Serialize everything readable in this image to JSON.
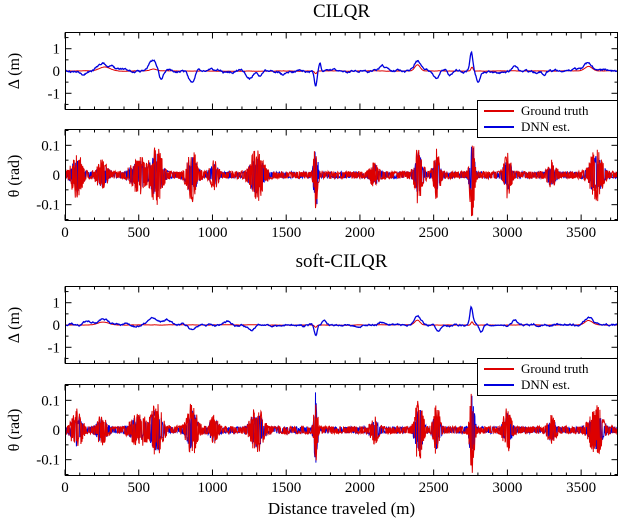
{
  "figure": {
    "titles": {
      "top": "CILQR",
      "bottom": "soft-CILQR"
    },
    "xlabel": "Distance traveled (m)",
    "legend": [
      {
        "label": "Ground truth",
        "color": "#dd0000"
      },
      {
        "label": "DNN est.",
        "color": "#0000dd"
      }
    ]
  },
  "chart_data": [
    {
      "type": "line",
      "group": "CILQR",
      "ylabel": "Δ (m)",
      "xlim": [
        0,
        3750
      ],
      "ylim": [
        -1.75,
        1.75
      ],
      "yticks": [
        -1,
        0,
        1
      ],
      "yminor": 0.5,
      "xticks": [
        0,
        500,
        1000,
        1500,
        2000,
        2500,
        3000,
        3500
      ],
      "xminor": 100,
      "x_labels_visible": false,
      "grid": false,
      "draw_order": [
        0,
        1
      ],
      "series": [
        {
          "name": "Ground truth",
          "color": "#dd0000",
          "lw": 1,
          "gen": "smooth",
          "smooth": 0.9,
          "jitter": 0.004,
          "events": [
            {
              "x": 270,
              "amp": 0.18,
              "w": 50
            },
            {
              "x": 600,
              "amp": 0.08,
              "w": 30
            },
            {
              "x": 1700,
              "amp": -0.12,
              "w": 10
            },
            {
              "x": 2390,
              "amp": 0.28,
              "w": 25
            },
            {
              "x": 2760,
              "amp": 0.18,
              "w": 10
            },
            {
              "x": 3550,
              "amp": 0.2,
              "w": 35
            }
          ]
        },
        {
          "name": "DNN est.",
          "color": "#0000dd",
          "lw": 1.3,
          "gen": "smooth",
          "smooth": 0.9,
          "jitter": 0.04,
          "events": [
            {
              "x": 120,
              "amp": -0.2,
              "w": 30
            },
            {
              "x": 260,
              "amp": 0.3,
              "w": 55
            },
            {
              "x": 330,
              "amp": 0.12,
              "w": 25
            },
            {
              "x": 480,
              "amp": -0.1,
              "w": 25
            },
            {
              "x": 600,
              "amp": 0.45,
              "w": 35
            },
            {
              "x": 650,
              "amp": -0.4,
              "w": 22
            },
            {
              "x": 860,
              "amp": -0.55,
              "w": 28
            },
            {
              "x": 905,
              "amp": 0.18,
              "w": 18
            },
            {
              "x": 1080,
              "amp": -0.12,
              "w": 25
            },
            {
              "x": 1250,
              "amp": -0.25,
              "w": 28
            },
            {
              "x": 1320,
              "amp": -0.32,
              "w": 22
            },
            {
              "x": 1480,
              "amp": -0.15,
              "w": 20
            },
            {
              "x": 1700,
              "amp": -0.7,
              "w": 12
            },
            {
              "x": 1728,
              "amp": 0.35,
              "w": 10
            },
            {
              "x": 2150,
              "amp": 0.2,
              "w": 30
            },
            {
              "x": 2390,
              "amp": 0.42,
              "w": 28
            },
            {
              "x": 2520,
              "amp": -0.35,
              "w": 25
            },
            {
              "x": 2610,
              "amp": -0.18,
              "w": 20
            },
            {
              "x": 2755,
              "amp": 0.85,
              "w": 13
            },
            {
              "x": 2800,
              "amp": -0.45,
              "w": 18
            },
            {
              "x": 3050,
              "amp": 0.25,
              "w": 25
            },
            {
              "x": 3250,
              "amp": -0.15,
              "w": 20
            },
            {
              "x": 3550,
              "amp": 0.3,
              "w": 40
            }
          ]
        }
      ]
    },
    {
      "type": "line",
      "group": "CILQR",
      "ylabel": "θ (rad)",
      "xlim": [
        0,
        3750
      ],
      "ylim": [
        -0.155,
        0.155
      ],
      "yticks": [
        -0.1,
        0,
        0.1
      ],
      "yminor": 0.05,
      "xticks": [
        0,
        500,
        1000,
        1500,
        2000,
        2500,
        3000,
        3500
      ],
      "xminor": 100,
      "x_labels_visible": true,
      "grid": false,
      "draw_order": [
        1,
        0
      ],
      "series": [
        {
          "name": "Ground truth",
          "color": "#dd0000",
          "lw": 1,
          "gen": "noisy",
          "base": 0.013,
          "events": [
            {
              "x": 80,
              "amp": 0.07,
              "w": 40
            },
            {
              "x": 250,
              "amp": 0.04,
              "w": 40
            },
            {
              "x": 500,
              "amp": 0.055,
              "w": 60
            },
            {
              "x": 620,
              "amp": 0.09,
              "w": 45
            },
            {
              "x": 860,
              "amp": 0.08,
              "w": 40
            },
            {
              "x": 1010,
              "amp": 0.04,
              "w": 30
            },
            {
              "x": 1300,
              "amp": 0.08,
              "w": 50
            },
            {
              "x": 1700,
              "amp": 0.1,
              "w": 15
            },
            {
              "x": 2100,
              "amp": 0.035,
              "w": 30
            },
            {
              "x": 2400,
              "amp": 0.1,
              "w": 30
            },
            {
              "x": 2520,
              "amp": 0.08,
              "w": 25
            },
            {
              "x": 2760,
              "amp": 0.14,
              "w": 18
            },
            {
              "x": 3000,
              "amp": 0.07,
              "w": 30
            },
            {
              "x": 3300,
              "amp": 0.04,
              "w": 30
            },
            {
              "x": 3600,
              "amp": 0.08,
              "w": 50
            }
          ]
        },
        {
          "name": "DNN est.",
          "color": "#0000dd",
          "lw": 1,
          "gen": "noisy",
          "base": 0.011,
          "events": [
            {
              "x": 80,
              "amp": 0.05,
              "w": 40
            },
            {
              "x": 250,
              "amp": 0.03,
              "w": 40
            },
            {
              "x": 500,
              "amp": 0.04,
              "w": 60
            },
            {
              "x": 620,
              "amp": 0.065,
              "w": 45
            },
            {
              "x": 860,
              "amp": 0.055,
              "w": 40
            },
            {
              "x": 1010,
              "amp": 0.03,
              "w": 30
            },
            {
              "x": 1300,
              "amp": 0.055,
              "w": 50
            },
            {
              "x": 1700,
              "amp": 0.13,
              "w": 14
            },
            {
              "x": 2100,
              "amp": 0.025,
              "w": 30
            },
            {
              "x": 2400,
              "amp": 0.07,
              "w": 30
            },
            {
              "x": 2520,
              "amp": 0.055,
              "w": 25
            },
            {
              "x": 2760,
              "amp": 0.11,
              "w": 18
            },
            {
              "x": 3000,
              "amp": 0.05,
              "w": 30
            },
            {
              "x": 3300,
              "amp": 0.03,
              "w": 30
            },
            {
              "x": 3600,
              "amp": 0.055,
              "w": 50
            }
          ]
        }
      ]
    },
    {
      "type": "line",
      "group": "soft-CILQR",
      "ylabel": "Δ (m)",
      "xlim": [
        0,
        3750
      ],
      "ylim": [
        -1.75,
        1.75
      ],
      "yticks": [
        -1,
        0,
        1
      ],
      "yminor": 0.5,
      "xticks": [
        0,
        500,
        1000,
        1500,
        2000,
        2500,
        3000,
        3500
      ],
      "xminor": 100,
      "x_labels_visible": false,
      "grid": false,
      "draw_order": [
        0,
        1
      ],
      "series": [
        {
          "name": "Ground truth",
          "color": "#dd0000",
          "lw": 1,
          "gen": "smooth",
          "smooth": 0.9,
          "jitter": 0.004,
          "events": [
            {
              "x": 260,
              "amp": 0.14,
              "w": 50
            },
            {
              "x": 1700,
              "amp": -0.1,
              "w": 10
            },
            {
              "x": 2390,
              "amp": 0.22,
              "w": 25
            },
            {
              "x": 2760,
              "amp": 0.15,
              "w": 10
            },
            {
              "x": 3550,
              "amp": 0.2,
              "w": 35
            }
          ]
        },
        {
          "name": "DNN est.",
          "color": "#0000dd",
          "lw": 1.3,
          "gen": "smooth",
          "smooth": 0.9,
          "jitter": 0.035,
          "events": [
            {
              "x": 150,
              "amp": 0.15,
              "w": 40
            },
            {
              "x": 260,
              "amp": 0.28,
              "w": 50
            },
            {
              "x": 430,
              "amp": 0.12,
              "w": 30
            },
            {
              "x": 600,
              "amp": 0.42,
              "w": 55
            },
            {
              "x": 700,
              "amp": 0.22,
              "w": 30
            },
            {
              "x": 860,
              "amp": -0.25,
              "w": 28
            },
            {
              "x": 1100,
              "amp": 0.1,
              "w": 30
            },
            {
              "x": 1260,
              "amp": -0.22,
              "w": 35
            },
            {
              "x": 1700,
              "amp": -0.5,
              "w": 14
            },
            {
              "x": 1760,
              "amp": 0.2,
              "w": 15
            },
            {
              "x": 2150,
              "amp": 0.15,
              "w": 30
            },
            {
              "x": 2390,
              "amp": 0.32,
              "w": 28
            },
            {
              "x": 2530,
              "amp": -0.25,
              "w": 25
            },
            {
              "x": 2755,
              "amp": 0.8,
              "w": 14
            },
            {
              "x": 2820,
              "amp": -0.3,
              "w": 20
            },
            {
              "x": 3050,
              "amp": 0.2,
              "w": 25
            },
            {
              "x": 3550,
              "amp": 0.3,
              "w": 40
            }
          ]
        }
      ]
    },
    {
      "type": "line",
      "group": "soft-CILQR",
      "ylabel": "θ (rad)",
      "xlim": [
        0,
        3750
      ],
      "ylim": [
        -0.155,
        0.155
      ],
      "yticks": [
        -0.1,
        0,
        0.1
      ],
      "yminor": 0.05,
      "xticks": [
        0,
        500,
        1000,
        1500,
        2000,
        2500,
        3000,
        3500
      ],
      "xminor": 100,
      "x_labels_visible": true,
      "grid": false,
      "draw_order": [
        1,
        0
      ],
      "series": [
        {
          "name": "Ground truth",
          "color": "#dd0000",
          "lw": 1,
          "gen": "noisy",
          "base": 0.013,
          "events": [
            {
              "x": 80,
              "amp": 0.06,
              "w": 40
            },
            {
              "x": 250,
              "amp": 0.04,
              "w": 40
            },
            {
              "x": 500,
              "amp": 0.05,
              "w": 60
            },
            {
              "x": 620,
              "amp": 0.08,
              "w": 45
            },
            {
              "x": 860,
              "amp": 0.08,
              "w": 40
            },
            {
              "x": 1010,
              "amp": 0.04,
              "w": 30
            },
            {
              "x": 1300,
              "amp": 0.07,
              "w": 50
            },
            {
              "x": 1700,
              "amp": 0.1,
              "w": 15
            },
            {
              "x": 2100,
              "amp": 0.035,
              "w": 30
            },
            {
              "x": 2400,
              "amp": 0.11,
              "w": 30
            },
            {
              "x": 2520,
              "amp": 0.08,
              "w": 25
            },
            {
              "x": 2760,
              "amp": 0.14,
              "w": 18
            },
            {
              "x": 3000,
              "amp": 0.07,
              "w": 30
            },
            {
              "x": 3300,
              "amp": 0.04,
              "w": 30
            },
            {
              "x": 3600,
              "amp": 0.08,
              "w": 50
            }
          ]
        },
        {
          "name": "DNN est.",
          "color": "#0000dd",
          "lw": 1,
          "gen": "noisy",
          "base": 0.011,
          "events": [
            {
              "x": 80,
              "amp": 0.045,
              "w": 40
            },
            {
              "x": 250,
              "amp": 0.03,
              "w": 40
            },
            {
              "x": 500,
              "amp": 0.035,
              "w": 60
            },
            {
              "x": 620,
              "amp": 0.06,
              "w": 45
            },
            {
              "x": 860,
              "amp": 0.055,
              "w": 40
            },
            {
              "x": 1010,
              "amp": 0.03,
              "w": 30
            },
            {
              "x": 1300,
              "amp": 0.05,
              "w": 50
            },
            {
              "x": 1700,
              "amp": 0.12,
              "w": 14
            },
            {
              "x": 2100,
              "amp": 0.025,
              "w": 30
            },
            {
              "x": 2400,
              "amp": 0.075,
              "w": 30
            },
            {
              "x": 2520,
              "amp": 0.055,
              "w": 25
            },
            {
              "x": 2760,
              "amp": 0.11,
              "w": 18
            },
            {
              "x": 3000,
              "amp": 0.05,
              "w": 30
            },
            {
              "x": 3300,
              "amp": 0.03,
              "w": 30
            },
            {
              "x": 3600,
              "amp": 0.055,
              "w": 50
            }
          ]
        }
      ]
    }
  ]
}
